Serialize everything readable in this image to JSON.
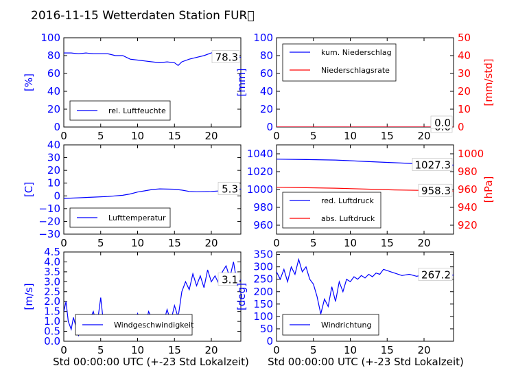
{
  "figure": {
    "title": "2016-11-15 Wetterdaten Station FUR\u0000",
    "xlabel": "Std 00:00:00 UTC (+-23 Std Lokalzeit)"
  },
  "colors": {
    "blue": "#0000ff",
    "red": "#ff0000",
    "black": "#000000"
  },
  "chart_data": [
    {
      "id": "humidity",
      "type": "line",
      "ylabel": "[%]",
      "xlim": [
        0,
        24
      ],
      "ylim": [
        0,
        100
      ],
      "xticks": [
        "0",
        "5",
        "10",
        "15",
        "20"
      ],
      "yticks": [
        "0",
        "20",
        "40",
        "60",
        "80",
        "100"
      ],
      "legend": [
        "rel. Luftfeuchte"
      ],
      "legend_loc": "lower-left",
      "last_value_label": "78.3",
      "series": [
        {
          "name": "rel. Luftfeuchte",
          "color": "#0000ff",
          "x": [
            0,
            1,
            2,
            3,
            4,
            5,
            6,
            7,
            8,
            9,
            10,
            11,
            12,
            13,
            14,
            15,
            15.5,
            16,
            17,
            18,
            19,
            20,
            21,
            22,
            23,
            24
          ],
          "y": [
            83,
            83,
            82,
            83,
            82,
            82,
            82,
            80,
            80,
            76,
            75,
            74,
            73,
            72,
            73,
            72,
            69,
            73,
            76,
            78,
            80,
            83,
            85,
            84,
            80,
            78
          ]
        }
      ]
    },
    {
      "id": "precip",
      "type": "line",
      "ylabel": "[mm]",
      "ylabel_right": "[mm/std]",
      "xlim": [
        0,
        24
      ],
      "ylim": [
        0,
        100
      ],
      "ylim_right": [
        0,
        50
      ],
      "xticks": [
        "0",
        "5",
        "10",
        "15",
        "20"
      ],
      "yticks": [
        "0",
        "20",
        "40",
        "60",
        "80",
        "100"
      ],
      "yticks_right": [
        "0",
        "10",
        "20",
        "30",
        "40",
        "50"
      ],
      "legend": [
        "kum. Niederschlag",
        "Niederschlagsrate"
      ],
      "legend_loc": "upper-left",
      "last_value_label": "0.0",
      "last_value_label_right": "0.0",
      "series": [
        {
          "name": "kum. Niederschlag",
          "color": "#0000ff",
          "x": [
            0,
            24
          ],
          "y": [
            0,
            0
          ]
        },
        {
          "name": "Niederschlagsrate",
          "color": "#ff0000",
          "axis": "right",
          "x": [
            0,
            24
          ],
          "y": [
            0,
            0
          ]
        }
      ]
    },
    {
      "id": "temperature",
      "type": "line",
      "ylabel": "[C]",
      "xlim": [
        0,
        24
      ],
      "ylim": [
        -30,
        40
      ],
      "xticks": [
        "0",
        "5",
        "10",
        "15",
        "20"
      ],
      "yticks": [
        "−30",
        "−20",
        "−10",
        "0",
        "10",
        "20",
        "30",
        "40"
      ],
      "legend": [
        "Lufttemperatur"
      ],
      "legend_loc": "lower-left",
      "last_value_label": "5.3",
      "series": [
        {
          "name": "Lufttemperatur",
          "color": "#0000ff",
          "x": [
            0,
            2,
            4,
            6,
            8,
            9,
            10,
            11,
            12,
            13,
            14,
            15,
            16,
            17,
            18,
            20,
            22,
            24
          ],
          "y": [
            -2,
            -1.5,
            -1,
            -0.5,
            0.5,
            1.5,
            3,
            4,
            5,
            5.5,
            5.3,
            5.2,
            4.5,
            3.5,
            3.2,
            3.5,
            4.2,
            5.3
          ]
        }
      ]
    },
    {
      "id": "pressure",
      "type": "line",
      "ylabel_right": "[hPa]",
      "xlim": [
        0,
        24
      ],
      "ylim": [
        950,
        1050
      ],
      "ylim_right": [
        910,
        1010
      ],
      "xticks": [
        "0",
        "5",
        "10",
        "15",
        "20"
      ],
      "yticks": [
        "960",
        "980",
        "1000",
        "1020",
        "1040"
      ],
      "yticks_right": [
        "920",
        "940",
        "960",
        "980",
        "1000"
      ],
      "legend": [
        "red. Luftdruck",
        "abs. Luftdruck"
      ],
      "legend_loc": "lower-left",
      "last_value_label": "1027.3",
      "last_value_label_right": "958.3",
      "series": [
        {
          "name": "red. Luftdruck",
          "color": "#0000ff",
          "x": [
            0,
            4,
            8,
            12,
            16,
            20,
            24
          ],
          "y": [
            1034,
            1033.5,
            1033,
            1031.5,
            1030,
            1028.5,
            1027.3
          ]
        },
        {
          "name": "abs. Luftdruck",
          "color": "#ff0000",
          "axis": "right",
          "x": [
            0,
            4,
            8,
            12,
            16,
            20,
            24
          ],
          "y": [
            962.5,
            962,
            961.5,
            960.5,
            959.5,
            959,
            958.3
          ]
        }
      ]
    },
    {
      "id": "wind-speed",
      "type": "line",
      "ylabel": "[m/s]",
      "xlim": [
        0,
        24
      ],
      "ylim": [
        0,
        4.5
      ],
      "xticks": [
        "0",
        "5",
        "10",
        "15",
        "20"
      ],
      "yticks": [
        "0.0",
        "0.5",
        "1.0",
        "1.5",
        "2.0",
        "2.5",
        "3.0",
        "3.5",
        "4.0",
        "4.5"
      ],
      "legend": [
        "Windgeschwindigkeit"
      ],
      "legend_loc": "lower-center",
      "last_value_label": "3.1",
      "series": [
        {
          "name": "Windgeschwindigkeit",
          "color": "#0000ff",
          "x": [
            0,
            0.3,
            0.6,
            1,
            1.3,
            1.6,
            2,
            2.5,
            3,
            3.5,
            4,
            4.5,
            5,
            5.5,
            6,
            6.5,
            7,
            7.5,
            8,
            8.5,
            9,
            9.5,
            10,
            10.5,
            11,
            11.5,
            12,
            12.5,
            13,
            13.5,
            14,
            14.5,
            15,
            15.5,
            16,
            16.5,
            17,
            17.5,
            18,
            18.5,
            19,
            19.5,
            20,
            20.5,
            21,
            21.5,
            22,
            22.5,
            23,
            23.5,
            24
          ],
          "y": [
            1.5,
            2.0,
            1.0,
            0.6,
            1.2,
            0.8,
            0.3,
            1.0,
            0.6,
            1.1,
            1.5,
            0.8,
            2.2,
            0.5,
            0.4,
            1.0,
            0.7,
            0.9,
            1.3,
            0.8,
            1.2,
            0.6,
            1.4,
            1.0,
            0.7,
            1.5,
            1.1,
            0.8,
            1.3,
            0.9,
            1.6,
            1.0,
            1.8,
            1.2,
            2.5,
            3.0,
            2.6,
            3.4,
            2.8,
            3.3,
            2.7,
            3.6,
            3.0,
            3.3,
            2.9,
            3.5,
            3.8,
            3.2,
            4.0,
            2.9,
            3.1
          ]
        }
      ]
    },
    {
      "id": "wind-direction",
      "type": "line",
      "ylabel": "[deg]",
      "xlim": [
        0,
        24
      ],
      "ylim": [
        0,
        360
      ],
      "xticks": [
        "0",
        "5",
        "10",
        "15",
        "20"
      ],
      "yticks": [
        "0",
        "50",
        "100",
        "150",
        "200",
        "250",
        "300",
        "350"
      ],
      "legend": [
        "Windrichtung"
      ],
      "legend_loc": "lower-left",
      "last_value_label": "267.2",
      "series": [
        {
          "name": "Windrichtung",
          "color": "#0000ff",
          "x": [
            0,
            0.5,
            1,
            1.5,
            2,
            2.5,
            3,
            3.5,
            4,
            4.5,
            5,
            5.5,
            6,
            6.5,
            7,
            7.5,
            8,
            8.5,
            9,
            9.5,
            10,
            10.5,
            11,
            11.5,
            12,
            12.5,
            13,
            13.5,
            14,
            14.5,
            15,
            15.5,
            16,
            17,
            18,
            19,
            20,
            21,
            22,
            23,
            24
          ],
          "y": [
            280,
            250,
            290,
            240,
            300,
            270,
            330,
            280,
            300,
            250,
            230,
            180,
            110,
            170,
            140,
            220,
            160,
            240,
            200,
            250,
            240,
            260,
            250,
            265,
            255,
            270,
            260,
            275,
            270,
            290,
            285,
            280,
            275,
            265,
            270,
            262,
            268,
            265,
            270,
            266,
            267
          ]
        }
      ]
    }
  ]
}
